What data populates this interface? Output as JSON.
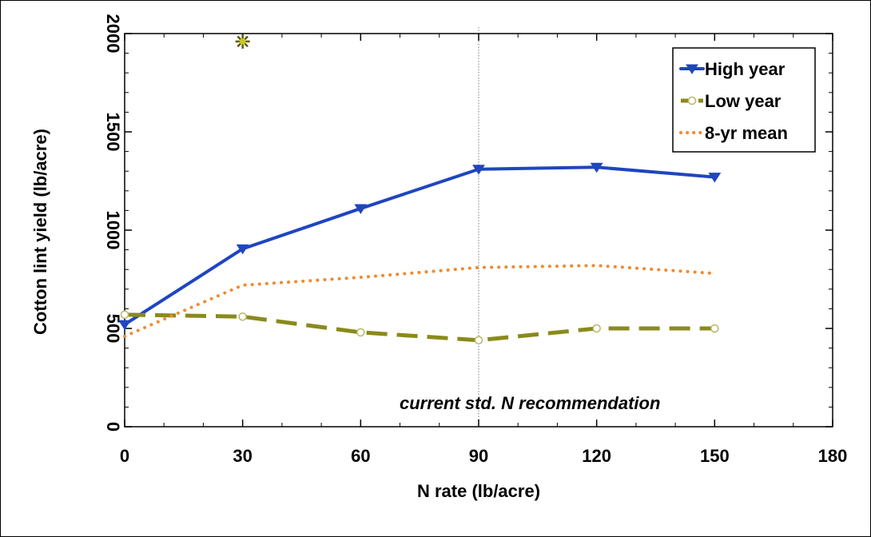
{
  "chart_data": {
    "type": "line",
    "xlabel": "N rate (lb/acre)",
    "ylabel": "Cotton lint yield  (lb/acre)",
    "xlim": [
      0,
      180
    ],
    "ylim": [
      0,
      2000
    ],
    "xticks": [
      "0",
      "30",
      "60",
      "90",
      "120",
      "150",
      "180"
    ],
    "yticks": [
      "0",
      "500",
      "1000",
      "1500",
      "2000"
    ],
    "grid": false,
    "legend_position": "top-right",
    "annotation": "current std. N recommendation",
    "reference_line_x": 90,
    "x": [
      0,
      30,
      60,
      90,
      120,
      150
    ],
    "series": [
      {
        "name": "High year",
        "color": "#1f45c0",
        "style": "solid",
        "marker": "triangle-down",
        "values": [
          520,
          905,
          1110,
          1310,
          1320,
          1270
        ]
      },
      {
        "name": "Low year",
        "color": "#8a8a1c",
        "style": "dashed",
        "marker": "circle",
        "values": [
          570,
          560,
          480,
          440,
          500,
          500
        ]
      },
      {
        "name": "8-yr mean",
        "color": "#f08a30",
        "style": "dotted",
        "marker": "none",
        "values": [
          460,
          720,
          760,
          810,
          820,
          780
        ]
      }
    ],
    "outlier": {
      "x": 30,
      "y": 1960,
      "color": "#c8c820",
      "marker": "asterisk"
    }
  }
}
